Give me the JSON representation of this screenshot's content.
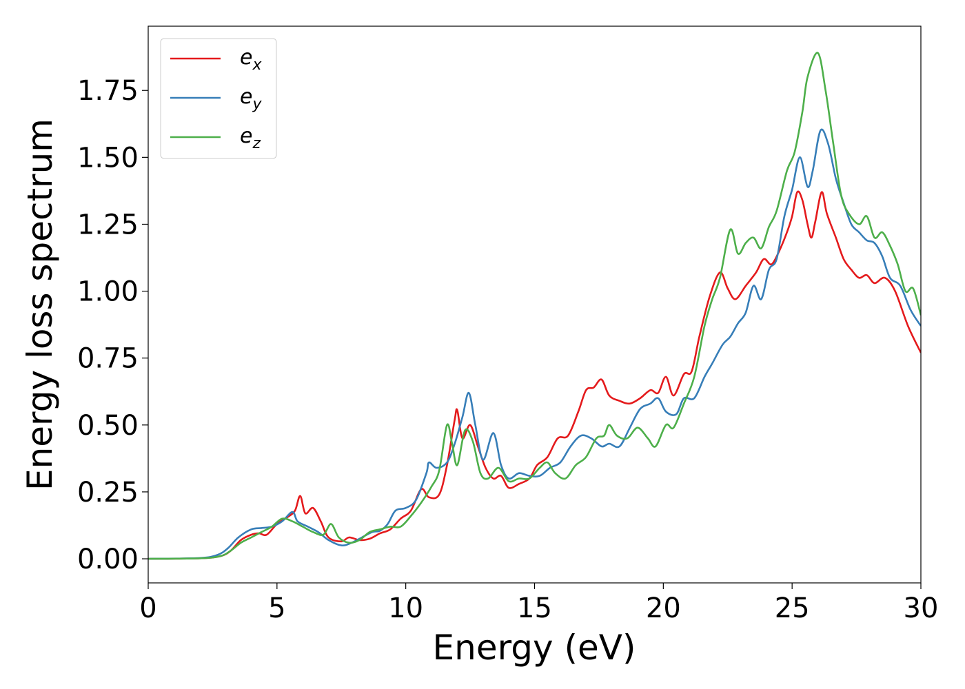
{
  "chart_data": {
    "type": "line",
    "title": "",
    "xlabel": "Energy (eV)",
    "ylabel": "Energy loss spectrum",
    "xlim": [
      0,
      30
    ],
    "ylim": [
      -0.09,
      1.99
    ],
    "xticks": [
      0,
      5,
      10,
      15,
      20,
      25,
      30
    ],
    "xtick_labels": [
      "0",
      "5",
      "10",
      "15",
      "20",
      "25",
      "30"
    ],
    "yticks": [
      0,
      0.25,
      0.5,
      0.75,
      1.0,
      1.25,
      1.5,
      1.75
    ],
    "ytick_labels": [
      "0.00",
      "0.25",
      "0.50",
      "0.75",
      "1.00",
      "1.25",
      "1.50",
      "1.75"
    ],
    "grid": false,
    "legend_position": "top-left",
    "series": [
      {
        "name": "e_x",
        "label_base": "e",
        "label_sub": "x",
        "color": "#e41a1c",
        "points": [
          [
            0,
            0
          ],
          [
            2,
            0.002
          ],
          [
            2.8,
            0.01
          ],
          [
            3.2,
            0.03
          ],
          [
            3.6,
            0.07
          ],
          [
            4.0,
            0.09
          ],
          [
            4.3,
            0.095
          ],
          [
            4.6,
            0.09
          ],
          [
            5.0,
            0.13
          ],
          [
            5.4,
            0.155
          ],
          [
            5.7,
            0.18
          ],
          [
            5.9,
            0.235
          ],
          [
            6.1,
            0.17
          ],
          [
            6.4,
            0.19
          ],
          [
            6.7,
            0.14
          ],
          [
            7.0,
            0.08
          ],
          [
            7.5,
            0.065
          ],
          [
            7.8,
            0.08
          ],
          [
            8.2,
            0.07
          ],
          [
            8.6,
            0.075
          ],
          [
            9.0,
            0.095
          ],
          [
            9.4,
            0.11
          ],
          [
            9.8,
            0.15
          ],
          [
            10.2,
            0.18
          ],
          [
            10.6,
            0.26
          ],
          [
            10.9,
            0.23
          ],
          [
            11.3,
            0.24
          ],
          [
            11.6,
            0.35
          ],
          [
            11.9,
            0.52
          ],
          [
            12.0,
            0.555
          ],
          [
            12.2,
            0.45
          ],
          [
            12.5,
            0.5
          ],
          [
            12.8,
            0.42
          ],
          [
            13.1,
            0.34
          ],
          [
            13.4,
            0.3
          ],
          [
            13.7,
            0.31
          ],
          [
            14.0,
            0.265
          ],
          [
            14.4,
            0.28
          ],
          [
            14.8,
            0.3
          ],
          [
            15.1,
            0.35
          ],
          [
            15.5,
            0.38
          ],
          [
            15.9,
            0.45
          ],
          [
            16.3,
            0.46
          ],
          [
            16.7,
            0.55
          ],
          [
            17.0,
            0.63
          ],
          [
            17.3,
            0.64
          ],
          [
            17.6,
            0.67
          ],
          [
            17.9,
            0.61
          ],
          [
            18.3,
            0.59
          ],
          [
            18.7,
            0.58
          ],
          [
            19.1,
            0.6
          ],
          [
            19.5,
            0.63
          ],
          [
            19.8,
            0.62
          ],
          [
            20.1,
            0.68
          ],
          [
            20.4,
            0.61
          ],
          [
            20.8,
            0.69
          ],
          [
            21.1,
            0.7
          ],
          [
            21.4,
            0.83
          ],
          [
            21.8,
            0.98
          ],
          [
            22.2,
            1.07
          ],
          [
            22.5,
            1.01
          ],
          [
            22.8,
            0.97
          ],
          [
            23.2,
            1.02
          ],
          [
            23.6,
            1.07
          ],
          [
            23.9,
            1.12
          ],
          [
            24.2,
            1.1
          ],
          [
            24.5,
            1.15
          ],
          [
            24.8,
            1.22
          ],
          [
            25.0,
            1.28
          ],
          [
            25.2,
            1.37
          ],
          [
            25.4,
            1.34
          ],
          [
            25.6,
            1.25
          ],
          [
            25.75,
            1.2
          ],
          [
            25.9,
            1.26
          ],
          [
            26.15,
            1.37
          ],
          [
            26.35,
            1.29
          ],
          [
            26.7,
            1.2
          ],
          [
            27.0,
            1.12
          ],
          [
            27.3,
            1.08
          ],
          [
            27.6,
            1.05
          ],
          [
            27.9,
            1.06
          ],
          [
            28.2,
            1.03
          ],
          [
            28.6,
            1.05
          ],
          [
            29.0,
            1.0
          ],
          [
            29.5,
            0.87
          ],
          [
            30.0,
            0.77
          ]
        ]
      },
      {
        "name": "e_y",
        "label_base": "e",
        "label_sub": "y",
        "color": "#377eb8",
        "points": [
          [
            0,
            0
          ],
          [
            2,
            0.003
          ],
          [
            2.7,
            0.015
          ],
          [
            3.1,
            0.04
          ],
          [
            3.5,
            0.08
          ],
          [
            4.0,
            0.11
          ],
          [
            4.4,
            0.115
          ],
          [
            4.8,
            0.12
          ],
          [
            5.2,
            0.14
          ],
          [
            5.6,
            0.175
          ],
          [
            5.8,
            0.14
          ],
          [
            6.2,
            0.12
          ],
          [
            6.6,
            0.1
          ],
          [
            7.0,
            0.07
          ],
          [
            7.5,
            0.05
          ],
          [
            7.9,
            0.06
          ],
          [
            8.3,
            0.08
          ],
          [
            8.7,
            0.1
          ],
          [
            9.0,
            0.105
          ],
          [
            9.3,
            0.13
          ],
          [
            9.6,
            0.18
          ],
          [
            10.0,
            0.19
          ],
          [
            10.4,
            0.22
          ],
          [
            10.8,
            0.32
          ],
          [
            10.9,
            0.36
          ],
          [
            11.2,
            0.34
          ],
          [
            11.6,
            0.36
          ],
          [
            11.9,
            0.43
          ],
          [
            12.2,
            0.53
          ],
          [
            12.45,
            0.62
          ],
          [
            12.7,
            0.5
          ],
          [
            13.0,
            0.37
          ],
          [
            13.4,
            0.47
          ],
          [
            13.7,
            0.35
          ],
          [
            14.0,
            0.3
          ],
          [
            14.4,
            0.32
          ],
          [
            14.8,
            0.31
          ],
          [
            15.2,
            0.31
          ],
          [
            15.6,
            0.34
          ],
          [
            16.0,
            0.36
          ],
          [
            16.4,
            0.42
          ],
          [
            16.8,
            0.46
          ],
          [
            17.2,
            0.45
          ],
          [
            17.6,
            0.42
          ],
          [
            17.9,
            0.43
          ],
          [
            18.3,
            0.42
          ],
          [
            18.7,
            0.49
          ],
          [
            19.1,
            0.56
          ],
          [
            19.5,
            0.58
          ],
          [
            19.8,
            0.6
          ],
          [
            20.1,
            0.55
          ],
          [
            20.5,
            0.54
          ],
          [
            20.8,
            0.6
          ],
          [
            21.2,
            0.6
          ],
          [
            21.6,
            0.68
          ],
          [
            21.9,
            0.73
          ],
          [
            22.3,
            0.8
          ],
          [
            22.6,
            0.83
          ],
          [
            22.9,
            0.88
          ],
          [
            23.2,
            0.92
          ],
          [
            23.5,
            1.02
          ],
          [
            23.8,
            0.97
          ],
          [
            24.1,
            1.08
          ],
          [
            24.4,
            1.12
          ],
          [
            24.7,
            1.28
          ],
          [
            25.0,
            1.38
          ],
          [
            25.3,
            1.5
          ],
          [
            25.6,
            1.39
          ],
          [
            25.8,
            1.45
          ],
          [
            26.1,
            1.6
          ],
          [
            26.4,
            1.55
          ],
          [
            26.7,
            1.42
          ],
          [
            27.0,
            1.33
          ],
          [
            27.3,
            1.25
          ],
          [
            27.6,
            1.22
          ],
          [
            27.9,
            1.19
          ],
          [
            28.2,
            1.18
          ],
          [
            28.5,
            1.13
          ],
          [
            28.8,
            1.05
          ],
          [
            29.2,
            1.02
          ],
          [
            29.6,
            0.93
          ],
          [
            30.0,
            0.87
          ]
        ]
      },
      {
        "name": "e_z",
        "label_base": "e",
        "label_sub": "z",
        "color": "#4daf4a",
        "points": [
          [
            0,
            0
          ],
          [
            2,
            0.002
          ],
          [
            2.8,
            0.01
          ],
          [
            3.2,
            0.03
          ],
          [
            3.6,
            0.06
          ],
          [
            4.0,
            0.08
          ],
          [
            4.4,
            0.1
          ],
          [
            4.8,
            0.12
          ],
          [
            5.2,
            0.15
          ],
          [
            5.6,
            0.14
          ],
          [
            6.0,
            0.12
          ],
          [
            6.4,
            0.1
          ],
          [
            6.8,
            0.09
          ],
          [
            7.1,
            0.13
          ],
          [
            7.4,
            0.08
          ],
          [
            7.8,
            0.06
          ],
          [
            8.2,
            0.07
          ],
          [
            8.6,
            0.1
          ],
          [
            9.0,
            0.11
          ],
          [
            9.4,
            0.12
          ],
          [
            9.8,
            0.12
          ],
          [
            10.2,
            0.16
          ],
          [
            10.6,
            0.21
          ],
          [
            11.0,
            0.27
          ],
          [
            11.3,
            0.33
          ],
          [
            11.6,
            0.5
          ],
          [
            11.8,
            0.43
          ],
          [
            12.0,
            0.35
          ],
          [
            12.3,
            0.48
          ],
          [
            12.6,
            0.44
          ],
          [
            12.9,
            0.32
          ],
          [
            13.2,
            0.3
          ],
          [
            13.6,
            0.34
          ],
          [
            14.0,
            0.29
          ],
          [
            14.4,
            0.3
          ],
          [
            14.8,
            0.3
          ],
          [
            15.2,
            0.34
          ],
          [
            15.5,
            0.36
          ],
          [
            15.8,
            0.32
          ],
          [
            16.2,
            0.3
          ],
          [
            16.6,
            0.35
          ],
          [
            17.0,
            0.38
          ],
          [
            17.4,
            0.45
          ],
          [
            17.7,
            0.46
          ],
          [
            17.9,
            0.5
          ],
          [
            18.2,
            0.46
          ],
          [
            18.6,
            0.45
          ],
          [
            19.0,
            0.49
          ],
          [
            19.4,
            0.45
          ],
          [
            19.7,
            0.42
          ],
          [
            20.1,
            0.5
          ],
          [
            20.4,
            0.49
          ],
          [
            20.8,
            0.58
          ],
          [
            21.2,
            0.68
          ],
          [
            21.6,
            0.87
          ],
          [
            21.9,
            0.97
          ],
          [
            22.2,
            1.05
          ],
          [
            22.6,
            1.23
          ],
          [
            22.9,
            1.14
          ],
          [
            23.2,
            1.18
          ],
          [
            23.5,
            1.2
          ],
          [
            23.8,
            1.16
          ],
          [
            24.1,
            1.24
          ],
          [
            24.4,
            1.3
          ],
          [
            24.8,
            1.45
          ],
          [
            25.1,
            1.52
          ],
          [
            25.4,
            1.67
          ],
          [
            25.6,
            1.8
          ],
          [
            26.0,
            1.89
          ],
          [
            26.3,
            1.75
          ],
          [
            26.6,
            1.55
          ],
          [
            26.9,
            1.36
          ],
          [
            27.2,
            1.29
          ],
          [
            27.6,
            1.25
          ],
          [
            27.9,
            1.28
          ],
          [
            28.2,
            1.2
          ],
          [
            28.5,
            1.22
          ],
          [
            28.8,
            1.17
          ],
          [
            29.1,
            1.1
          ],
          [
            29.4,
            1.0
          ],
          [
            29.7,
            1.01
          ],
          [
            30.0,
            0.91
          ]
        ]
      }
    ]
  }
}
